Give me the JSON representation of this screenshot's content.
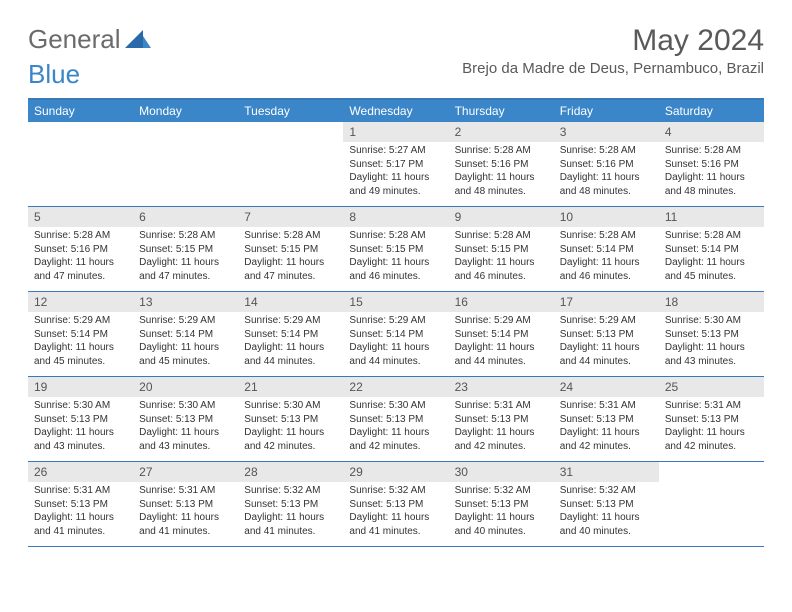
{
  "logo": {
    "name_part1": "General",
    "name_part2": "Blue"
  },
  "title": "May 2024",
  "location": "Brejo da Madre de Deus, Pernambuco, Brazil",
  "colors": {
    "header_bg": "#3a86c8",
    "header_text": "#ffffff",
    "border": "#3a79b7",
    "daynum_bg": "#e8e8e8",
    "text": "#333333",
    "title_text": "#595959",
    "logo_gray": "#6b6b6b"
  },
  "typography": {
    "title_fontsize": 30,
    "location_fontsize": 15,
    "dayheader_fontsize": 12,
    "daynum_fontsize": 12,
    "cell_fontsize": 10
  },
  "day_names": [
    "Sunday",
    "Monday",
    "Tuesday",
    "Wednesday",
    "Thursday",
    "Friday",
    "Saturday"
  ],
  "weeks": [
    [
      null,
      null,
      null,
      {
        "n": "1",
        "sr": "Sunrise: 5:27 AM",
        "ss": "Sunset: 5:17 PM",
        "dl1": "Daylight: 11 hours",
        "dl2": "and 49 minutes."
      },
      {
        "n": "2",
        "sr": "Sunrise: 5:28 AM",
        "ss": "Sunset: 5:16 PM",
        "dl1": "Daylight: 11 hours",
        "dl2": "and 48 minutes."
      },
      {
        "n": "3",
        "sr": "Sunrise: 5:28 AM",
        "ss": "Sunset: 5:16 PM",
        "dl1": "Daylight: 11 hours",
        "dl2": "and 48 minutes."
      },
      {
        "n": "4",
        "sr": "Sunrise: 5:28 AM",
        "ss": "Sunset: 5:16 PM",
        "dl1": "Daylight: 11 hours",
        "dl2": "and 48 minutes."
      }
    ],
    [
      {
        "n": "5",
        "sr": "Sunrise: 5:28 AM",
        "ss": "Sunset: 5:16 PM",
        "dl1": "Daylight: 11 hours",
        "dl2": "and 47 minutes."
      },
      {
        "n": "6",
        "sr": "Sunrise: 5:28 AM",
        "ss": "Sunset: 5:15 PM",
        "dl1": "Daylight: 11 hours",
        "dl2": "and 47 minutes."
      },
      {
        "n": "7",
        "sr": "Sunrise: 5:28 AM",
        "ss": "Sunset: 5:15 PM",
        "dl1": "Daylight: 11 hours",
        "dl2": "and 47 minutes."
      },
      {
        "n": "8",
        "sr": "Sunrise: 5:28 AM",
        "ss": "Sunset: 5:15 PM",
        "dl1": "Daylight: 11 hours",
        "dl2": "and 46 minutes."
      },
      {
        "n": "9",
        "sr": "Sunrise: 5:28 AM",
        "ss": "Sunset: 5:15 PM",
        "dl1": "Daylight: 11 hours",
        "dl2": "and 46 minutes."
      },
      {
        "n": "10",
        "sr": "Sunrise: 5:28 AM",
        "ss": "Sunset: 5:14 PM",
        "dl1": "Daylight: 11 hours",
        "dl2": "and 46 minutes."
      },
      {
        "n": "11",
        "sr": "Sunrise: 5:28 AM",
        "ss": "Sunset: 5:14 PM",
        "dl1": "Daylight: 11 hours",
        "dl2": "and 45 minutes."
      }
    ],
    [
      {
        "n": "12",
        "sr": "Sunrise: 5:29 AM",
        "ss": "Sunset: 5:14 PM",
        "dl1": "Daylight: 11 hours",
        "dl2": "and 45 minutes."
      },
      {
        "n": "13",
        "sr": "Sunrise: 5:29 AM",
        "ss": "Sunset: 5:14 PM",
        "dl1": "Daylight: 11 hours",
        "dl2": "and 45 minutes."
      },
      {
        "n": "14",
        "sr": "Sunrise: 5:29 AM",
        "ss": "Sunset: 5:14 PM",
        "dl1": "Daylight: 11 hours",
        "dl2": "and 44 minutes."
      },
      {
        "n": "15",
        "sr": "Sunrise: 5:29 AM",
        "ss": "Sunset: 5:14 PM",
        "dl1": "Daylight: 11 hours",
        "dl2": "and 44 minutes."
      },
      {
        "n": "16",
        "sr": "Sunrise: 5:29 AM",
        "ss": "Sunset: 5:14 PM",
        "dl1": "Daylight: 11 hours",
        "dl2": "and 44 minutes."
      },
      {
        "n": "17",
        "sr": "Sunrise: 5:29 AM",
        "ss": "Sunset: 5:13 PM",
        "dl1": "Daylight: 11 hours",
        "dl2": "and 44 minutes."
      },
      {
        "n": "18",
        "sr": "Sunrise: 5:30 AM",
        "ss": "Sunset: 5:13 PM",
        "dl1": "Daylight: 11 hours",
        "dl2": "and 43 minutes."
      }
    ],
    [
      {
        "n": "19",
        "sr": "Sunrise: 5:30 AM",
        "ss": "Sunset: 5:13 PM",
        "dl1": "Daylight: 11 hours",
        "dl2": "and 43 minutes."
      },
      {
        "n": "20",
        "sr": "Sunrise: 5:30 AM",
        "ss": "Sunset: 5:13 PM",
        "dl1": "Daylight: 11 hours",
        "dl2": "and 43 minutes."
      },
      {
        "n": "21",
        "sr": "Sunrise: 5:30 AM",
        "ss": "Sunset: 5:13 PM",
        "dl1": "Daylight: 11 hours",
        "dl2": "and 42 minutes."
      },
      {
        "n": "22",
        "sr": "Sunrise: 5:30 AM",
        "ss": "Sunset: 5:13 PM",
        "dl1": "Daylight: 11 hours",
        "dl2": "and 42 minutes."
      },
      {
        "n": "23",
        "sr": "Sunrise: 5:31 AM",
        "ss": "Sunset: 5:13 PM",
        "dl1": "Daylight: 11 hours",
        "dl2": "and 42 minutes."
      },
      {
        "n": "24",
        "sr": "Sunrise: 5:31 AM",
        "ss": "Sunset: 5:13 PM",
        "dl1": "Daylight: 11 hours",
        "dl2": "and 42 minutes."
      },
      {
        "n": "25",
        "sr": "Sunrise: 5:31 AM",
        "ss": "Sunset: 5:13 PM",
        "dl1": "Daylight: 11 hours",
        "dl2": "and 42 minutes."
      }
    ],
    [
      {
        "n": "26",
        "sr": "Sunrise: 5:31 AM",
        "ss": "Sunset: 5:13 PM",
        "dl1": "Daylight: 11 hours",
        "dl2": "and 41 minutes."
      },
      {
        "n": "27",
        "sr": "Sunrise: 5:31 AM",
        "ss": "Sunset: 5:13 PM",
        "dl1": "Daylight: 11 hours",
        "dl2": "and 41 minutes."
      },
      {
        "n": "28",
        "sr": "Sunrise: 5:32 AM",
        "ss": "Sunset: 5:13 PM",
        "dl1": "Daylight: 11 hours",
        "dl2": "and 41 minutes."
      },
      {
        "n": "29",
        "sr": "Sunrise: 5:32 AM",
        "ss": "Sunset: 5:13 PM",
        "dl1": "Daylight: 11 hours",
        "dl2": "and 41 minutes."
      },
      {
        "n": "30",
        "sr": "Sunrise: 5:32 AM",
        "ss": "Sunset: 5:13 PM",
        "dl1": "Daylight: 11 hours",
        "dl2": "and 40 minutes."
      },
      {
        "n": "31",
        "sr": "Sunrise: 5:32 AM",
        "ss": "Sunset: 5:13 PM",
        "dl1": "Daylight: 11 hours",
        "dl2": "and 40 minutes."
      },
      null
    ]
  ]
}
